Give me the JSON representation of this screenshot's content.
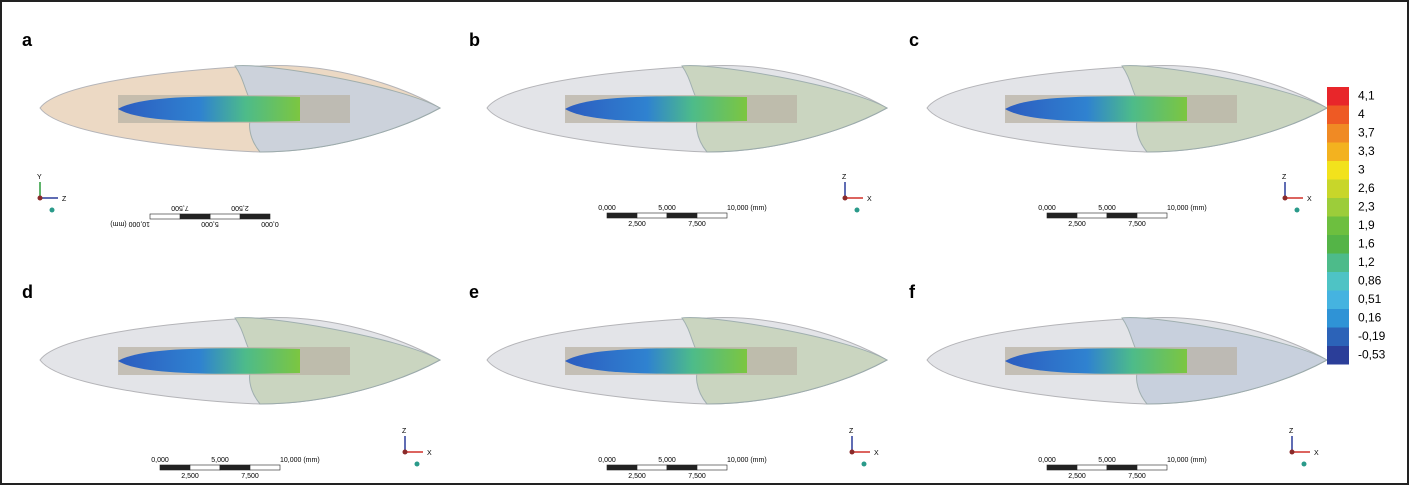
{
  "panels": [
    {
      "label": "a",
      "scale": [
        "0,000",
        "5,000",
        "10,000 (mm)",
        "2,500",
        "7,500"
      ],
      "axes": [
        "Y",
        "Z"
      ]
    },
    {
      "label": "b",
      "scale": [
        "0,000",
        "5,000",
        "10,000 (mm)",
        "2,500",
        "7,500"
      ],
      "axes": [
        "Z",
        "X"
      ]
    },
    {
      "label": "c",
      "scale": [
        "0,000",
        "5,000",
        "10,000 (mm)",
        "2,500",
        "7,500"
      ],
      "axes": [
        "Z",
        "X"
      ]
    },
    {
      "label": "d",
      "scale": [
        "0,000",
        "5,000",
        "10,000 (mm)",
        "2,500",
        "7,500"
      ],
      "axes": [
        "Z",
        "X"
      ]
    },
    {
      "label": "e",
      "scale": [
        "0,000",
        "5,000",
        "10,000 (mm)",
        "2,500",
        "7,500"
      ],
      "axes": [
        "Z",
        "X"
      ]
    },
    {
      "label": "f",
      "scale": [
        "0,000",
        "5,000",
        "10,000 (mm)",
        "2,500",
        "7,500"
      ],
      "axes": [
        "Z",
        "X"
      ]
    }
  ],
  "colorbar": {
    "labels": [
      "4,1",
      "4",
      "3,7",
      "3,3",
      "3",
      "2,6",
      "2,3",
      "1,9",
      "1,6",
      "1,2",
      "0,86",
      "0,51",
      "0,16",
      "-0,19",
      "-0,53"
    ],
    "colors": [
      "#e8262a",
      "#ee5a24",
      "#f08a24",
      "#f3b21f",
      "#f2e21c",
      "#c8d62a",
      "#9ccd3a",
      "#6dbf3f",
      "#54b447",
      "#4dbb8a",
      "#4ec3c5",
      "#45b3e0",
      "#2f93d6",
      "#2c63b8",
      "#2b3e99"
    ]
  }
}
